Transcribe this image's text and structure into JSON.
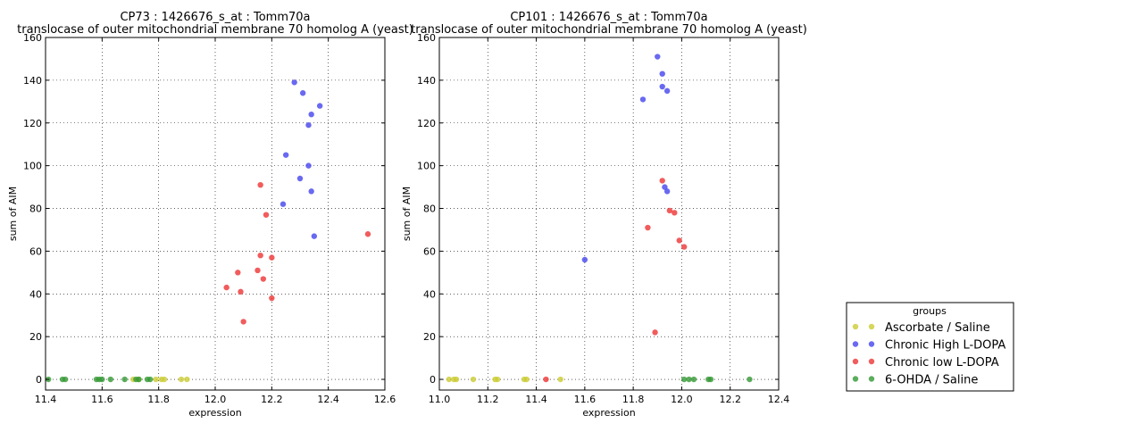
{
  "chart_data": [
    {
      "type": "scatter",
      "title_line1": "CP73 : 1426676_s_at : Tomm70a",
      "title_line2": "translocase of outer mitochondrial membrane 70 homolog A (yeast)",
      "xlabel": "expression",
      "ylabel": "sum of AIM",
      "xlim": [
        11.4,
        12.6
      ],
      "ylim": [
        -5,
        160
      ],
      "xticks": [
        "11.4",
        "11.6",
        "11.8",
        "12.0",
        "12.2",
        "12.4",
        "12.6"
      ],
      "yticks": [
        "0",
        "20",
        "40",
        "60",
        "80",
        "100",
        "120",
        "140",
        "160"
      ],
      "grid": true,
      "series": [
        {
          "name": "Ascorbate / Saline",
          "color": "#cccc33",
          "points": [
            [
              11.79,
              0
            ],
            [
              11.81,
              0
            ],
            [
              11.82,
              0
            ],
            [
              11.88,
              0
            ],
            [
              11.9,
              0
            ],
            [
              11.73,
              0
            ],
            [
              11.71,
              0
            ]
          ]
        },
        {
          "name": "Chronic High L-DOPA",
          "color": "#4444ee",
          "points": [
            [
              12.28,
              139
            ],
            [
              12.31,
              134
            ],
            [
              12.37,
              128
            ],
            [
              12.34,
              124
            ],
            [
              12.33,
              119
            ],
            [
              12.25,
              105
            ],
            [
              12.33,
              100
            ],
            [
              12.3,
              94
            ],
            [
              12.34,
              88
            ],
            [
              12.24,
              82
            ],
            [
              12.35,
              67
            ]
          ]
        },
        {
          "name": "Chronic low L-DOPA",
          "color": "#ee3333",
          "points": [
            [
              12.16,
              91
            ],
            [
              12.18,
              77
            ],
            [
              12.54,
              68
            ],
            [
              12.16,
              58
            ],
            [
              12.2,
              57
            ],
            [
              12.15,
              51
            ],
            [
              12.08,
              50
            ],
            [
              12.17,
              47
            ],
            [
              12.04,
              43
            ],
            [
              12.09,
              41
            ],
            [
              12.2,
              38
            ],
            [
              12.1,
              27
            ]
          ]
        },
        {
          "name": "6-OHDA / Saline",
          "color": "#339933",
          "points": [
            [
              11.41,
              0
            ],
            [
              11.46,
              0
            ],
            [
              11.47,
              0
            ],
            [
              11.58,
              0
            ],
            [
              11.59,
              0
            ],
            [
              11.6,
              0
            ],
            [
              11.63,
              0
            ],
            [
              11.68,
              0
            ],
            [
              11.72,
              0
            ],
            [
              11.73,
              0
            ],
            [
              11.76,
              0
            ],
            [
              11.77,
              0
            ]
          ]
        }
      ]
    },
    {
      "type": "scatter",
      "title_line1": "CP101 : 1426676_s_at : Tomm70a",
      "title_line2": "translocase of outer mitochondrial membrane 70 homolog A (yeast)",
      "xlabel": "expression",
      "ylabel": "sum of AIM",
      "xlim": [
        11.0,
        12.4
      ],
      "ylim": [
        -5,
        160
      ],
      "xticks": [
        "11.0",
        "11.2",
        "11.4",
        "11.6",
        "11.8",
        "12.0",
        "12.2",
        "12.4"
      ],
      "yticks": [
        "0",
        "20",
        "40",
        "60",
        "80",
        "100",
        "120",
        "140",
        "160"
      ],
      "grid": true,
      "series": [
        {
          "name": "Ascorbate / Saline",
          "color": "#cccc33",
          "points": [
            [
              11.04,
              0
            ],
            [
              11.06,
              0
            ],
            [
              11.07,
              0
            ],
            [
              11.14,
              0
            ],
            [
              11.23,
              0
            ],
            [
              11.24,
              0
            ],
            [
              11.35,
              0
            ],
            [
              11.36,
              0
            ],
            [
              11.5,
              0
            ]
          ]
        },
        {
          "name": "Chronic High L-DOPA",
          "color": "#4444ee",
          "points": [
            [
              11.9,
              151
            ],
            [
              11.92,
              143
            ],
            [
              11.92,
              137
            ],
            [
              11.94,
              135
            ],
            [
              11.84,
              131
            ],
            [
              11.93,
              90
            ],
            [
              11.94,
              88
            ],
            [
              11.6,
              56
            ]
          ]
        },
        {
          "name": "Chronic low L-DOPA",
          "color": "#ee3333",
          "points": [
            [
              11.92,
              93
            ],
            [
              11.95,
              79
            ],
            [
              11.97,
              78
            ],
            [
              11.86,
              71
            ],
            [
              11.99,
              65
            ],
            [
              12.01,
              62
            ],
            [
              11.89,
              22
            ],
            [
              11.44,
              0
            ]
          ]
        },
        {
          "name": "6-OHDA / Saline",
          "color": "#339933",
          "points": [
            [
              12.01,
              0
            ],
            [
              12.03,
              0
            ],
            [
              12.05,
              0
            ],
            [
              12.11,
              0
            ],
            [
              12.12,
              0
            ],
            [
              12.28,
              0
            ]
          ]
        }
      ]
    }
  ],
  "legend": {
    "title": "groups",
    "placement": "lower-right",
    "entries": [
      {
        "label": "Ascorbate / Saline",
        "color": "#cccc33"
      },
      {
        "label": "Chronic High L-DOPA",
        "color": "#4444ee"
      },
      {
        "label": "Chronic low L-DOPA",
        "color": "#ee3333"
      },
      {
        "label": "6-OHDA / Saline",
        "color": "#339933"
      }
    ]
  }
}
